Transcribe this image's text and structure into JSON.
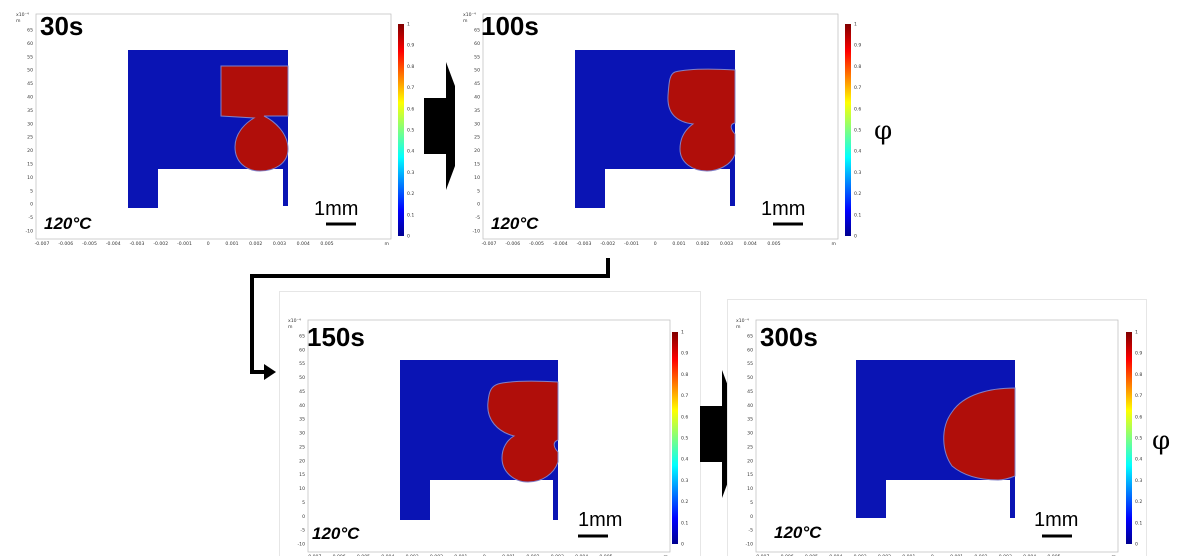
{
  "field_symbol": "φ",
  "colors": {
    "phase_zero": "#0a14b4",
    "phase_one": "#b00e0a",
    "interface": "#8080c8",
    "arrow": "#000000"
  },
  "axes": {
    "y_exponent": "x10⁻⁴",
    "y_unit": "m",
    "x_unit": "m",
    "y_ticks": [
      "65",
      "60",
      "55",
      "50",
      "45",
      "40",
      "35",
      "30",
      "25",
      "20",
      "15",
      "10",
      "5",
      "0",
      "-5",
      "-10"
    ],
    "x_ticks": [
      "-0.007",
      "-0.006",
      "-0.005",
      "-0.004",
      "-0.003",
      "-0.002",
      "-0.001",
      "0",
      "0.001",
      "0.002",
      "0.003",
      "0.004",
      "0.005"
    ]
  },
  "colorbar": {
    "ticks": [
      "1",
      "0.9",
      "0.8",
      "0.7",
      "0.6",
      "0.5",
      "0.4",
      "0.3",
      "0.2",
      "0.1",
      "0"
    ],
    "colormap": "rainbow"
  },
  "panels": [
    {
      "time_label": "30s",
      "temperature": "120°C",
      "scale_bar": "1mm",
      "stage": 30
    },
    {
      "time_label": "100s",
      "temperature": "120°C",
      "scale_bar": "1mm",
      "stage": 100
    },
    {
      "time_label": "150s",
      "temperature": "120°C",
      "scale_bar": "1mm",
      "stage": 150
    },
    {
      "time_label": "300s",
      "temperature": "120°C",
      "scale_bar": "1mm",
      "stage": 300
    }
  ]
}
